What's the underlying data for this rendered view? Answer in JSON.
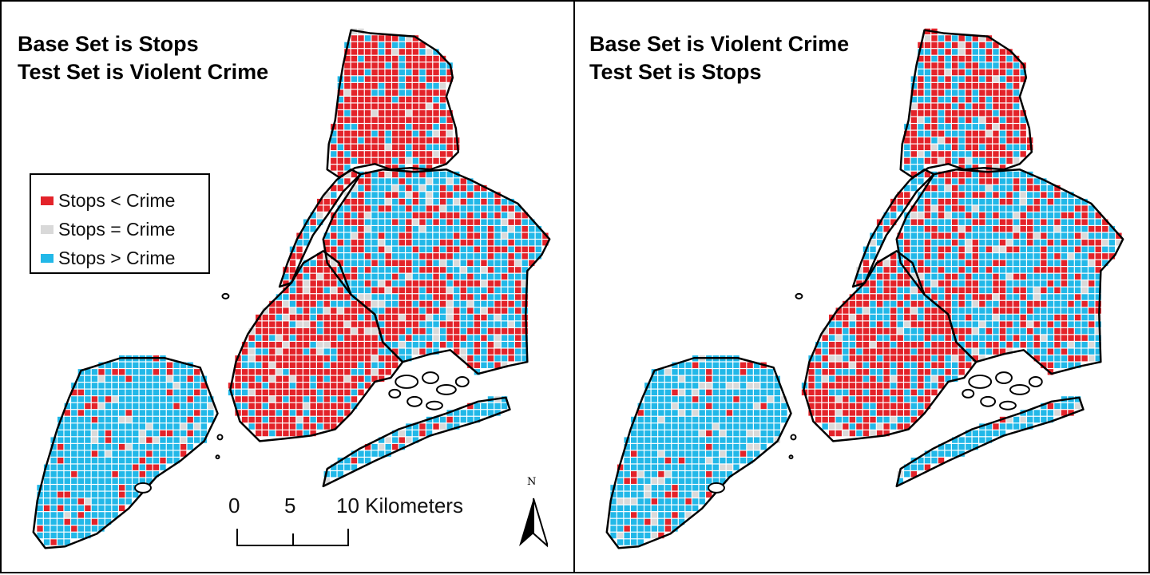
{
  "panels": [
    {
      "id": "left",
      "title_line1": "Base Set is Stops",
      "title_line2": "Test Set is Violent Crime",
      "red_bias": 0.58
    },
    {
      "id": "right",
      "title_line1": "Base Set is Violent Crime",
      "title_line2": "Test Set is Stops",
      "red_bias": 0.5
    }
  ],
  "legend": {
    "items": [
      {
        "label": "Stops < Crime",
        "color": "#e3232a"
      },
      {
        "label": "Stops = Crime",
        "color": "#d9d9d9"
      },
      {
        "label": "Stops > Crime",
        "color": "#22b8e8"
      }
    ]
  },
  "scalebar": {
    "labels": [
      "0",
      "5",
      "10 Kilometers"
    ]
  },
  "north_arrow": {
    "label": "N",
    "icon": "north-arrow-icon"
  },
  "colors": {
    "red": "#e3232a",
    "gray": "#d9d9d9",
    "blue": "#22b8e8",
    "grid_line": "#ffffff",
    "boundary": "#000000"
  }
}
